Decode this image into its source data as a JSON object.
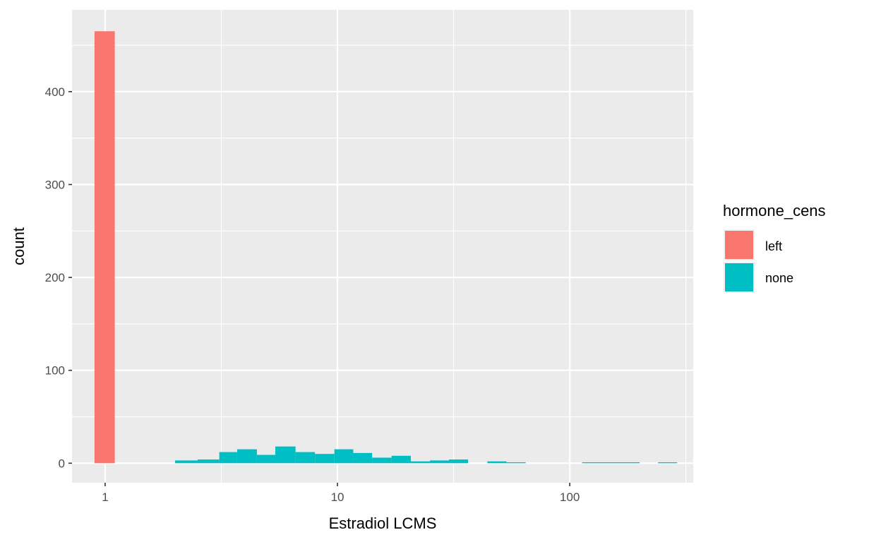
{
  "chart_data": {
    "type": "bar",
    "subtype": "histogram",
    "xlabel": "Estradiol LCMS",
    "ylabel": "count",
    "x_scale": "log10",
    "xlim": [
      0.72,
      340
    ],
    "ylim": [
      -21,
      488
    ],
    "x_ticks": [
      1,
      10,
      100
    ],
    "x_tick_labels": [
      "1",
      "10",
      "100"
    ],
    "y_ticks": [
      0,
      100,
      200,
      300,
      400
    ],
    "y_tick_labels": [
      "0",
      "100",
      "200",
      "300",
      "400"
    ],
    "grid": true,
    "legend": {
      "title": "hormone_cens",
      "position": "right",
      "entries": [
        {
          "label": "left",
          "color": "#F8766D"
        },
        {
          "label": "none",
          "color": "#00BFC4"
        }
      ]
    },
    "colors": {
      "panel_background": "#EBEBEB",
      "grid": "#FFFFFF",
      "left": "#F8766D",
      "none": "#00BFC4"
    },
    "series": [
      {
        "name": "left",
        "color": "#F8766D",
        "bins": [
          {
            "x0": 0.9,
            "x1": 1.1,
            "count": 465
          }
        ]
      },
      {
        "name": "none",
        "color": "#00BFC4",
        "bins": [
          {
            "x0": 2.0,
            "x1": 2.5,
            "count": 3
          },
          {
            "x0": 2.5,
            "x1": 3.1,
            "count": 4
          },
          {
            "x0": 3.1,
            "x1": 3.7,
            "count": 12
          },
          {
            "x0": 3.7,
            "x1": 4.5,
            "count": 15
          },
          {
            "x0": 4.5,
            "x1": 5.4,
            "count": 9
          },
          {
            "x0": 5.4,
            "x1": 6.6,
            "count": 18
          },
          {
            "x0": 6.6,
            "x1": 8.0,
            "count": 12
          },
          {
            "x0": 8.0,
            "x1": 9.7,
            "count": 10
          },
          {
            "x0": 9.7,
            "x1": 11.7,
            "count": 15
          },
          {
            "x0": 11.7,
            "x1": 14.1,
            "count": 11
          },
          {
            "x0": 14.1,
            "x1": 17.1,
            "count": 6
          },
          {
            "x0": 17.1,
            "x1": 20.7,
            "count": 8
          },
          {
            "x0": 20.7,
            "x1": 25.0,
            "count": 2
          },
          {
            "x0": 25.0,
            "x1": 30.2,
            "count": 3
          },
          {
            "x0": 30.2,
            "x1": 36.5,
            "count": 4
          },
          {
            "x0": 44.2,
            "x1": 53.4,
            "count": 2
          },
          {
            "x0": 53.4,
            "x1": 64.6,
            "count": 1
          },
          {
            "x0": 113,
            "x1": 137,
            "count": 1
          },
          {
            "x0": 137,
            "x1": 165,
            "count": 1
          },
          {
            "x0": 165,
            "x1": 200,
            "count": 1
          },
          {
            "x0": 240,
            "x1": 290,
            "count": 1
          }
        ]
      }
    ]
  }
}
